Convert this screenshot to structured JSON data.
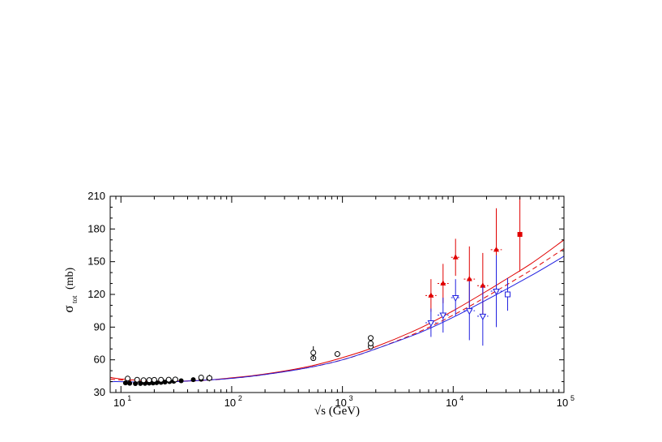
{
  "chart_data": {
    "type": "scatter",
    "title": "",
    "xlabel": "√s  (GeV)",
    "ylabel": "σ",
    "ylabel_sub": "tot",
    "ylabel_unit": "(mb)",
    "x_scale": "log",
    "xlim": [
      8,
      100000
    ],
    "ylim": [
      30,
      210
    ],
    "y_ticks": [
      30,
      60,
      90,
      120,
      150,
      180,
      210
    ],
    "x_ticks": [
      {
        "value": 10,
        "base": "10",
        "exp": "1"
      },
      {
        "value": 100,
        "base": "10",
        "exp": "2"
      },
      {
        "value": 1000,
        "base": "10",
        "exp": "3"
      },
      {
        "value": 10000,
        "base": "10",
        "exp": "4"
      },
      {
        "value": 100000,
        "base": "10",
        "exp": "5"
      }
    ],
    "grid": false,
    "colors": {
      "red": "#e00000",
      "blue": "#2020e0",
      "black": "#000000"
    },
    "curves": [
      {
        "style": "solid",
        "color": "#e00000",
        "x": [
          8,
          10,
          20,
          50,
          100,
          200,
          500,
          1000,
          2000,
          5000,
          10000,
          20000,
          50000,
          100000
        ],
        "y": [
          44,
          42.5,
          40.5,
          41,
          43.5,
          47,
          54,
          62,
          72,
          89,
          105,
          123,
          148,
          170
        ]
      },
      {
        "style": "dashed",
        "color": "#e00000",
        "x": [
          8,
          10,
          20,
          50,
          100,
          200,
          500,
          1000,
          2000,
          5000,
          10000,
          20000,
          50000,
          100000
        ],
        "y": [
          42.5,
          41.5,
          40,
          40.8,
          43,
          46.5,
          53,
          60,
          70,
          86,
          101,
          118,
          142,
          162
        ]
      },
      {
        "style": "solid",
        "color": "#2020e0",
        "x": [
          8,
          10,
          20,
          50,
          100,
          200,
          500,
          1000,
          2000,
          5000,
          10000,
          20000,
          50000,
          100000
        ],
        "y": [
          40,
          40,
          39.5,
          41,
          43,
          46.5,
          53,
          60,
          70,
          85,
          99,
          115,
          137,
          155
        ]
      }
    ],
    "series": [
      {
        "marker": "filled-circle",
        "color": "#000000",
        "points": [
          {
            "x": 11,
            "y": 38.8
          },
          {
            "x": 12,
            "y": 38.5
          },
          {
            "x": 13.5,
            "y": 38.2
          },
          {
            "x": 15,
            "y": 38.3
          },
          {
            "x": 16.5,
            "y": 38.4
          },
          {
            "x": 18,
            "y": 38.6
          },
          {
            "x": 19.5,
            "y": 38.7
          },
          {
            "x": 21,
            "y": 39.0
          },
          {
            "x": 23,
            "y": 39.3
          },
          {
            "x": 25,
            "y": 39.6
          },
          {
            "x": 27.5,
            "y": 40.0
          },
          {
            "x": 30,
            "y": 40.3
          },
          {
            "x": 35,
            "y": 40.8
          },
          {
            "x": 45,
            "y": 41.8
          },
          {
            "x": 53,
            "y": 42.2
          },
          {
            "x": 62,
            "y": 42.9
          }
        ]
      },
      {
        "marker": "open-circle",
        "color": "#000000",
        "points": [
          {
            "x": 11.5,
            "y": 42.8
          },
          {
            "x": 14,
            "y": 41.7
          },
          {
            "x": 16,
            "y": 41.3
          },
          {
            "x": 18,
            "y": 41.4
          },
          {
            "x": 20,
            "y": 41.6
          },
          {
            "x": 23,
            "y": 41.7
          },
          {
            "x": 27,
            "y": 41.8
          },
          {
            "x": 31,
            "y": 42.0
          },
          {
            "x": 53,
            "y": 43.8
          },
          {
            "x": 63,
            "y": 43.3,
            "err": 3
          },
          {
            "x": 546,
            "y": 61.5
          },
          {
            "x": 546,
            "y": 66.5,
            "err": 6
          },
          {
            "x": 900,
            "y": 65.3
          },
          {
            "x": 1800,
            "y": 72.1
          },
          {
            "x": 1800,
            "y": 75.0
          },
          {
            "x": 1800,
            "y": 80.0
          }
        ]
      },
      {
        "marker": "filled-triangle",
        "color": "#e00000",
        "points": [
          {
            "x": 6300,
            "y": 119,
            "err": 15,
            "xerr": 0.05
          },
          {
            "x": 8100,
            "y": 130,
            "err": 18,
            "xerr": 0.05
          },
          {
            "x": 10500,
            "y": 154,
            "err": 17,
            "xerr": 0.04
          },
          {
            "x": 14000,
            "y": 134,
            "err": 30,
            "xerr": 0.05
          },
          {
            "x": 18500,
            "y": 128,
            "err": 30,
            "xerr": 0.05
          },
          {
            "x": 24500,
            "y": 161,
            "err": 38,
            "xerr": 0.05
          }
        ]
      },
      {
        "marker": "filled-square",
        "color": "#e00000",
        "points": [
          {
            "x": 40000,
            "y": 175,
            "err": 34
          }
        ]
      },
      {
        "marker": "open-triangle-down",
        "color": "#2020e0",
        "points": [
          {
            "x": 6300,
            "y": 94,
            "err": 13,
            "xerr": 0.05
          },
          {
            "x": 8100,
            "y": 101,
            "err": 16,
            "xerr": 0.05
          },
          {
            "x": 10500,
            "y": 117,
            "err": 17,
            "xerr": 0.04
          },
          {
            "x": 14000,
            "y": 105,
            "err": 27,
            "xerr": 0.05
          },
          {
            "x": 18500,
            "y": 100,
            "err": 27,
            "xerr": 0.05
          },
          {
            "x": 24500,
            "y": 123,
            "err": 33,
            "xerr": 0.05
          }
        ]
      },
      {
        "marker": "open-square",
        "color": "#2020e0",
        "points": [
          {
            "x": 31000,
            "y": 120,
            "err": 15
          }
        ]
      }
    ]
  }
}
